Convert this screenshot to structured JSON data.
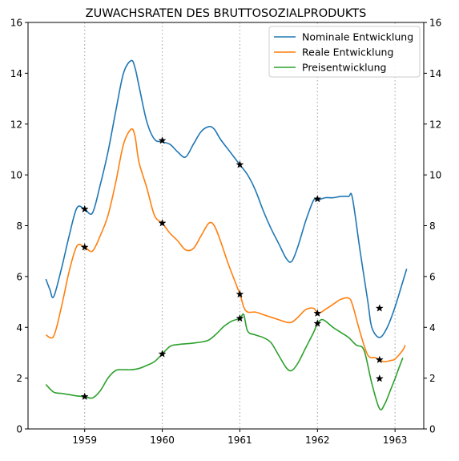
{
  "chart_data": {
    "type": "line",
    "title": "ZUWACHSRATEN DES BRUTTOSOZIALPRODUKTS",
    "xlabel": "",
    "ylabel": "",
    "xlim": [
      1958.27,
      1963.37
    ],
    "ylim": [
      0,
      16
    ],
    "x_ticks": [
      1959,
      1960,
      1961,
      1962,
      1963
    ],
    "y_ticks": [
      0,
      2,
      4,
      6,
      8,
      10,
      12,
      14,
      16
    ],
    "secondary_y_axis": true,
    "grid": "vertical dotted lines at year ticks",
    "legend_position": "top-right",
    "series": [
      {
        "name": "Nominale Entwicklung",
        "color": "#1f77b4",
        "x": [
          1958.5,
          1958.55,
          1958.6,
          1958.7,
          1958.8,
          1958.9,
          1959.0,
          1959.1,
          1959.2,
          1959.3,
          1959.4,
          1959.5,
          1959.6,
          1959.65,
          1959.7,
          1959.8,
          1959.9,
          1960.0,
          1960.1,
          1960.2,
          1960.3,
          1960.4,
          1960.5,
          1960.6,
          1960.67,
          1960.75,
          1960.85,
          1961.0,
          1961.1,
          1961.2,
          1961.3,
          1961.4,
          1961.5,
          1961.6,
          1961.67,
          1961.75,
          1961.85,
          1961.95,
          1962.0,
          1962.1,
          1962.2,
          1962.3,
          1962.4,
          1962.45,
          1962.55,
          1962.65,
          1962.7,
          1962.8,
          1962.9,
          1963.0,
          1963.1,
          1963.15
        ],
        "values": [
          5.9,
          5.5,
          5.2,
          6.3,
          7.6,
          8.7,
          8.65,
          8.5,
          9.6,
          10.9,
          12.5,
          14.0,
          14.5,
          14.2,
          13.5,
          12.1,
          11.4,
          11.3,
          11.2,
          10.9,
          10.7,
          11.2,
          11.7,
          11.9,
          11.8,
          11.4,
          11.0,
          10.4,
          10.0,
          9.4,
          8.6,
          7.9,
          7.3,
          6.7,
          6.6,
          7.2,
          8.2,
          9.0,
          9.0,
          9.1,
          9.1,
          9.15,
          9.15,
          9.1,
          7.0,
          5.0,
          4.0,
          3.6,
          4.0,
          4.8,
          5.8,
          6.3
        ]
      },
      {
        "name": "Reale Entwicklung",
        "color": "#ff7f0e",
        "x": [
          1958.5,
          1958.6,
          1958.7,
          1958.8,
          1958.9,
          1959.0,
          1959.1,
          1959.2,
          1959.3,
          1959.4,
          1959.5,
          1959.6,
          1959.65,
          1959.7,
          1959.8,
          1959.9,
          1960.0,
          1960.1,
          1960.2,
          1960.3,
          1960.4,
          1960.5,
          1960.6,
          1960.67,
          1960.75,
          1960.85,
          1961.0,
          1961.05,
          1961.1,
          1961.2,
          1961.3,
          1961.4,
          1961.5,
          1961.6,
          1961.67,
          1961.75,
          1961.85,
          1961.95,
          1962.0,
          1962.05,
          1962.1,
          1962.2,
          1962.3,
          1962.4,
          1962.45,
          1962.55,
          1962.65,
          1962.75,
          1962.85,
          1962.95,
          1963.0,
          1963.1,
          1963.13
        ],
        "values": [
          3.7,
          3.65,
          4.8,
          6.2,
          7.2,
          7.15,
          7.0,
          7.6,
          8.4,
          9.7,
          11.2,
          11.8,
          11.5,
          10.5,
          9.5,
          8.4,
          8.1,
          7.7,
          7.4,
          7.05,
          7.1,
          7.6,
          8.1,
          8.0,
          7.4,
          6.5,
          5.3,
          4.8,
          4.6,
          4.6,
          4.5,
          4.4,
          4.3,
          4.2,
          4.2,
          4.4,
          4.7,
          4.75,
          4.55,
          4.6,
          4.7,
          4.9,
          5.1,
          5.15,
          4.9,
          3.8,
          2.9,
          2.8,
          2.65,
          2.7,
          2.75,
          3.1,
          3.3
        ]
      },
      {
        "name": "Preisentwicklung",
        "color": "#2ca02c",
        "x": [
          1958.5,
          1958.6,
          1958.7,
          1958.8,
          1958.9,
          1959.0,
          1959.1,
          1959.2,
          1959.3,
          1959.4,
          1959.5,
          1959.6,
          1959.7,
          1959.8,
          1959.9,
          1960.0,
          1960.1,
          1960.2,
          1960.3,
          1960.4,
          1960.5,
          1960.6,
          1960.7,
          1960.8,
          1960.9,
          1961.0,
          1961.05,
          1961.1,
          1961.2,
          1961.3,
          1961.4,
          1961.5,
          1961.6,
          1961.67,
          1961.75,
          1961.85,
          1961.95,
          1962.0,
          1962.05,
          1962.1,
          1962.2,
          1962.3,
          1962.4,
          1962.5,
          1962.6,
          1962.7,
          1962.8,
          1962.87,
          1962.95,
          1963.0,
          1963.05,
          1963.1
        ],
        "values": [
          1.75,
          1.45,
          1.4,
          1.35,
          1.3,
          1.27,
          1.22,
          1.5,
          2.0,
          2.3,
          2.33,
          2.33,
          2.38,
          2.5,
          2.65,
          2.95,
          3.25,
          3.32,
          3.35,
          3.38,
          3.42,
          3.5,
          3.75,
          4.05,
          4.25,
          4.35,
          4.5,
          3.85,
          3.7,
          3.6,
          3.4,
          2.9,
          2.4,
          2.3,
          2.6,
          3.2,
          3.8,
          4.15,
          4.3,
          4.25,
          4.0,
          3.8,
          3.6,
          3.3,
          3.1,
          1.8,
          0.8,
          1.0,
          1.6,
          1.98,
          2.4,
          2.8
        ]
      }
    ],
    "markers": {
      "symbol": "star",
      "color": "#000000",
      "points": [
        {
          "x": 1959.0,
          "y": 8.65
        },
        {
          "x": 1959.0,
          "y": 7.15
        },
        {
          "x": 1959.0,
          "y": 1.27
        },
        {
          "x": 1960.0,
          "y": 11.35
        },
        {
          "x": 1960.0,
          "y": 8.1
        },
        {
          "x": 1960.0,
          "y": 2.95
        },
        {
          "x": 1961.0,
          "y": 10.4
        },
        {
          "x": 1961.0,
          "y": 5.3
        },
        {
          "x": 1961.0,
          "y": 4.35
        },
        {
          "x": 1962.0,
          "y": 9.05
        },
        {
          "x": 1962.0,
          "y": 4.55
        },
        {
          "x": 1962.0,
          "y": 4.15
        },
        {
          "x": 1962.8,
          "y": 4.75
        },
        {
          "x": 1962.8,
          "y": 2.72
        },
        {
          "x": 1962.8,
          "y": 1.98
        }
      ]
    }
  }
}
